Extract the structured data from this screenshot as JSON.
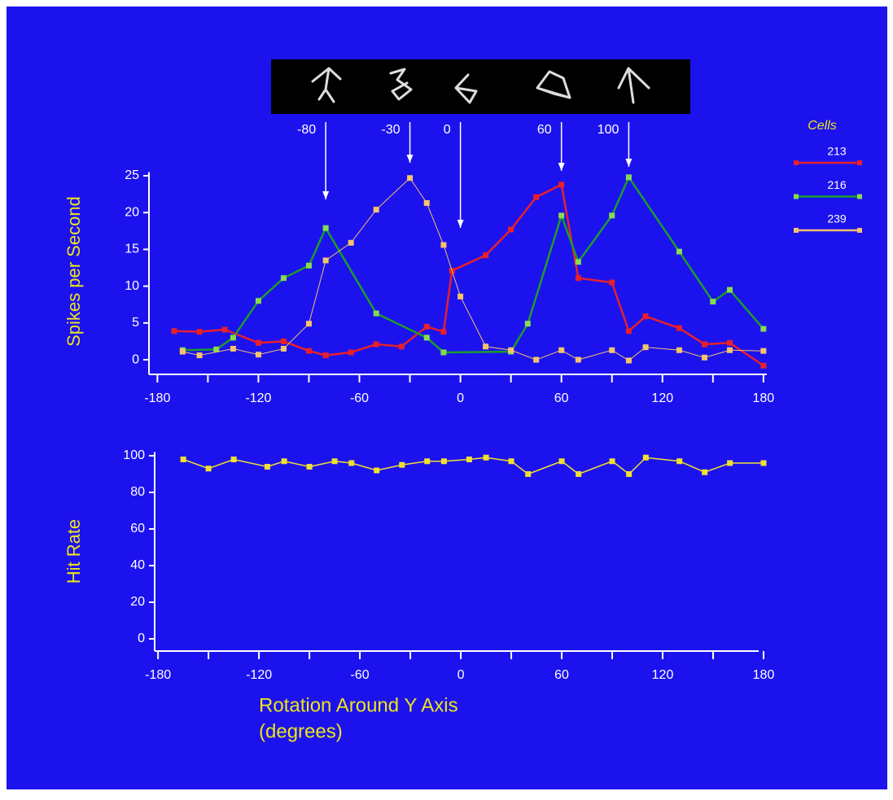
{
  "chart_data": [
    {
      "type": "line",
      "ylabel": "Spikes per Second",
      "xlim": [
        -185,
        182
      ],
      "ylim": [
        -1.5,
        25.5
      ],
      "xticks": [
        -180,
        -120,
        -60,
        0,
        60,
        120,
        180
      ],
      "minor_xticks": [
        -150,
        -90,
        -30,
        30,
        90,
        150
      ],
      "yticks": [
        0,
        5,
        10,
        15,
        20,
        25
      ],
      "arrows": [
        -80,
        -30,
        0,
        60,
        100
      ],
      "legend_title": "Cells",
      "legend": "right",
      "series": [
        {
          "name": "213",
          "color": "#e8202a",
          "marker_color": "#e8202a",
          "x": [
            -170,
            -155,
            -140,
            -120,
            -105,
            -90,
            -80,
            -65,
            -50,
            -35,
            -20,
            -10,
            -5,
            15,
            30,
            45,
            60,
            70,
            90,
            100,
            110,
            130,
            145,
            160,
            180
          ],
          "values": [
            3.9,
            3.8,
            4.1,
            2.3,
            2.5,
            1.2,
            0.6,
            1.0,
            2.1,
            1.8,
            4.5,
            3.8,
            12.1,
            14.2,
            17.7,
            22.1,
            23.8,
            11.1,
            10.5,
            3.9,
            5.9,
            4.3,
            2.1,
            2.3,
            -0.8
          ]
        },
        {
          "name": "216",
          "color": "#1a9e2a",
          "marker_color": "#86dc50",
          "x": [
            -165,
            -145,
            -135,
            -120,
            -105,
            -90,
            -80,
            -50,
            -20,
            -10,
            30,
            40,
            60,
            70,
            90,
            100,
            130,
            150,
            160,
            180
          ],
          "values": [
            1.3,
            1.4,
            3.0,
            8.0,
            11.1,
            12.8,
            17.9,
            6.3,
            3.0,
            1.0,
            1.1,
            4.9,
            19.6,
            13.3,
            19.6,
            24.8,
            14.7,
            7.9,
            9.5,
            4.2
          ]
        },
        {
          "name": "239",
          "color": "#f0c070",
          "marker_color": "#f5c36a",
          "x": [
            -165,
            -155,
            -135,
            -120,
            -105,
            -90,
            -80,
            -65,
            -50,
            -30,
            -20,
            -10,
            0,
            15,
            30,
            45,
            60,
            70,
            90,
            100,
            110,
            130,
            145,
            160,
            180
          ],
          "values": [
            1.1,
            0.6,
            1.5,
            0.7,
            1.5,
            4.9,
            13.5,
            15.9,
            20.4,
            24.7,
            21.3,
            15.6,
            8.6,
            1.8,
            1.3,
            0.0,
            1.3,
            0.0,
            1.3,
            -0.1,
            1.7,
            1.3,
            0.3,
            1.3,
            1.2
          ]
        }
      ]
    },
    {
      "type": "line",
      "ylabel": "Hit Rate",
      "xlabel": [
        "Rotation Around Y Axis",
        "(degrees)"
      ],
      "xlim": [
        -182,
        180
      ],
      "ylim": [
        -6.5,
        102
      ],
      "xticks": [
        -180,
        -120,
        -60,
        0,
        60,
        120,
        180
      ],
      "minor_xticks": [
        -150,
        -90,
        -30,
        30,
        90,
        150
      ],
      "yticks": [
        0,
        20,
        40,
        60,
        80,
        100
      ],
      "series": [
        {
          "color": "#f0e030",
          "marker_color": "#f0e030",
          "x": [
            -165,
            -150,
            -135,
            -115,
            -105,
            -90,
            -75,
            -65,
            -50,
            -35,
            -20,
            -10,
            5,
            15,
            30,
            40,
            60,
            70,
            90,
            100,
            110,
            130,
            145,
            160,
            180
          ],
          "values": [
            98,
            93,
            98,
            94,
            97,
            94,
            97,
            96,
            92,
            95,
            97,
            97,
            98,
            99,
            97,
            90,
            97,
            90,
            97,
            90,
            99,
            97,
            91,
            96,
            96
          ]
        }
      ]
    }
  ]
}
